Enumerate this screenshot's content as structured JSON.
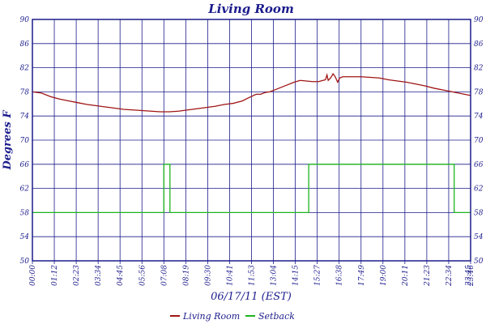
{
  "chart_data": {
    "type": "line",
    "title": "Living Room",
    "xlabel": "06/17/11 (EST)",
    "ylabel": "Degrees F",
    "ylim": [
      50,
      90
    ],
    "yticks": [
      50,
      54,
      58,
      62,
      66,
      70,
      74,
      78,
      82,
      86,
      90
    ],
    "xlim": [
      0,
      1440
    ],
    "x_ticks": [
      "00:00",
      "01:12",
      "02:23",
      "03:34",
      "04:45",
      "05:56",
      "07:08",
      "08:19",
      "09:30",
      "10:41",
      "11:53",
      "13:04",
      "14:15",
      "15:27",
      "16:38",
      "17:49",
      "19:00",
      "20:11",
      "21:23",
      "22:34",
      "23:46",
      "23:45"
    ],
    "grid": true,
    "legend_position": "bottom",
    "series": [
      {
        "name": "Living Room",
        "color": "#a01414",
        "points": [
          [
            0,
            78.0
          ],
          [
            30,
            77.8
          ],
          [
            60,
            77.2
          ],
          [
            90,
            76.8
          ],
          [
            120,
            76.5
          ],
          [
            150,
            76.2
          ],
          [
            180,
            75.9
          ],
          [
            210,
            75.7
          ],
          [
            240,
            75.5
          ],
          [
            270,
            75.3
          ],
          [
            300,
            75.1
          ],
          [
            330,
            75.0
          ],
          [
            360,
            74.9
          ],
          [
            390,
            74.8
          ],
          [
            420,
            74.7
          ],
          [
            450,
            74.7
          ],
          [
            480,
            74.8
          ],
          [
            510,
            75.0
          ],
          [
            540,
            75.2
          ],
          [
            570,
            75.4
          ],
          [
            600,
            75.6
          ],
          [
            630,
            75.9
          ],
          [
            660,
            76.1
          ],
          [
            690,
            76.5
          ],
          [
            710,
            77.0
          ],
          [
            735,
            77.6
          ],
          [
            750,
            77.6
          ],
          [
            765,
            77.9
          ],
          [
            780,
            78.0
          ],
          [
            800,
            78.4
          ],
          [
            830,
            79.0
          ],
          [
            860,
            79.6
          ],
          [
            880,
            79.9
          ],
          [
            900,
            79.8
          ],
          [
            920,
            79.7
          ],
          [
            940,
            79.7
          ],
          [
            955,
            79.9
          ],
          [
            963,
            80.0
          ],
          [
            968,
            80.8
          ],
          [
            972,
            79.9
          ],
          [
            980,
            80.3
          ],
          [
            988,
            81.0
          ],
          [
            995,
            80.5
          ],
          [
            1003,
            79.6
          ],
          [
            1010,
            80.3
          ],
          [
            1020,
            80.5
          ],
          [
            1050,
            80.5
          ],
          [
            1080,
            80.5
          ],
          [
            1110,
            80.4
          ],
          [
            1140,
            80.3
          ],
          [
            1170,
            80.0
          ],
          [
            1200,
            79.8
          ],
          [
            1230,
            79.6
          ],
          [
            1260,
            79.3
          ],
          [
            1290,
            79.0
          ],
          [
            1320,
            78.6
          ],
          [
            1350,
            78.3
          ],
          [
            1380,
            78.0
          ],
          [
            1410,
            77.7
          ],
          [
            1440,
            77.4
          ]
        ]
      },
      {
        "name": "Setback",
        "color": "#1eb41e",
        "points": [
          [
            0,
            58
          ],
          [
            432,
            58
          ],
          [
            432,
            66
          ],
          [
            452,
            66
          ],
          [
            452,
            58
          ],
          [
            908,
            58
          ],
          [
            908,
            66
          ],
          [
            1386,
            66
          ],
          [
            1386,
            58
          ],
          [
            1440,
            58
          ]
        ]
      }
    ]
  }
}
